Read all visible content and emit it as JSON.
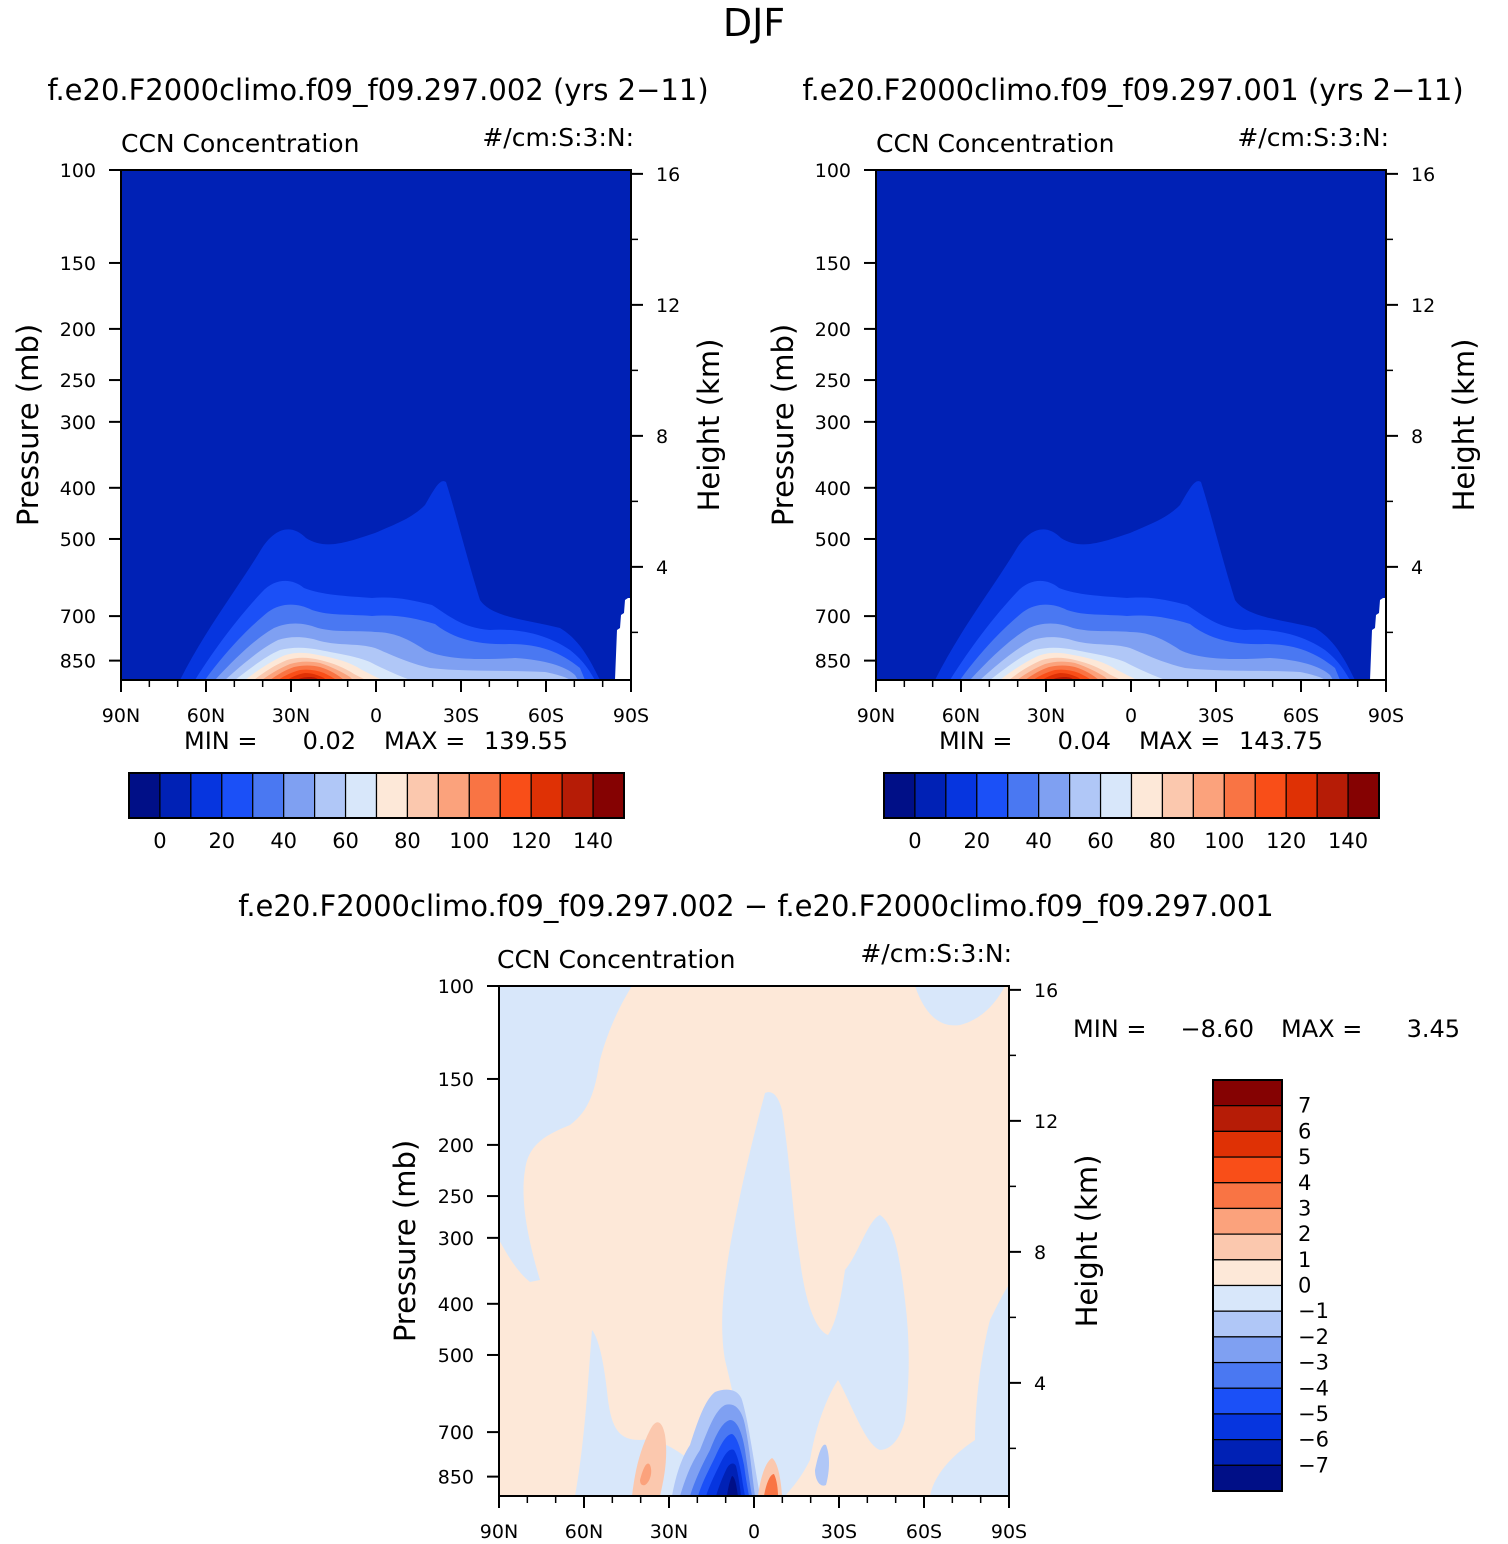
{
  "figure": {
    "title": "DJF",
    "bottom_title": "f.e20.F2000climo.f09_f09.297.002 − f.e20.F2000climo.f09_f09.297.001"
  },
  "chart_data": [
    {
      "type": "heatmap",
      "title": "f.e20.F2000climo.f09_f09.297.002 (yrs 2−11)",
      "left_label": "CCN Concentration",
      "right_label": "#/cm:S:3:N:",
      "ylabel": "Pressure (mb)",
      "ylabel_right": "Height (km)",
      "x_ticks": [
        "90N",
        "60N",
        "30N",
        "0",
        "30S",
        "60S",
        "90S"
      ],
      "y_ticks": [
        100,
        150,
        200,
        250,
        300,
        400,
        500,
        700,
        850
      ],
      "y_right_ticks": [
        16,
        12,
        8,
        4
      ],
      "stats": {
        "min_label": "MIN =",
        "min": "0.02",
        "max_label": "MAX =",
        "max": "139.55"
      },
      "colorbar": {
        "labels": [
          "0",
          "20",
          "40",
          "60",
          "80",
          "100",
          "120",
          "140"
        ],
        "colors": [
          "#000f87",
          "#0021b5",
          "#0635df",
          "#1b50f7",
          "#4a78f2",
          "#7fa0f2",
          "#b0c7f7",
          "#d8e7fa",
          "#fde8d8",
          "#fbc8ae",
          "#fba27c",
          "#f97444",
          "#f94e18",
          "#df3105",
          "#b61c06",
          "#850202"
        ]
      }
    },
    {
      "type": "heatmap",
      "title": "f.e20.F2000climo.f09_f09.297.001 (yrs 2−11)",
      "left_label": "CCN Concentration",
      "right_label": "#/cm:S:3:N:",
      "ylabel": "Pressure (mb)",
      "ylabel_right": "Height (km)",
      "x_ticks": [
        "90N",
        "60N",
        "30N",
        "0",
        "30S",
        "60S",
        "90S"
      ],
      "y_ticks": [
        100,
        150,
        200,
        250,
        300,
        400,
        500,
        700,
        850
      ],
      "y_right_ticks": [
        16,
        12,
        8,
        4
      ],
      "stats": {
        "min_label": "MIN =",
        "min": "0.04",
        "max_label": "MAX =",
        "max": "143.75"
      },
      "colorbar": {
        "labels": [
          "0",
          "20",
          "40",
          "60",
          "80",
          "100",
          "120",
          "140"
        ],
        "colors": [
          "#000f87",
          "#0021b5",
          "#0635df",
          "#1b50f7",
          "#4a78f2",
          "#7fa0f2",
          "#b0c7f7",
          "#d8e7fa",
          "#fde8d8",
          "#fbc8ae",
          "#fba27c",
          "#f97444",
          "#f94e18",
          "#df3105",
          "#b61c06",
          "#850202"
        ]
      }
    },
    {
      "type": "heatmap",
      "left_label": "CCN Concentration",
      "right_label": "#/cm:S:3:N:",
      "ylabel": "Pressure (mb)",
      "ylabel_right": "Height (km)",
      "x_ticks": [
        "90N",
        "60N",
        "30N",
        "0",
        "30S",
        "60S",
        "90S"
      ],
      "y_ticks": [
        100,
        150,
        200,
        250,
        300,
        400,
        500,
        700,
        850
      ],
      "y_right_ticks": [
        16,
        12,
        8,
        4
      ],
      "stats": {
        "min_label": "MIN =",
        "min": "−8.60",
        "max_label": "MAX =",
        "max": "3.45"
      },
      "colorbar": {
        "labels": [
          "7",
          "6",
          "5",
          "4",
          "3",
          "2",
          "1",
          "0",
          "−1",
          "−2",
          "−3",
          "−4",
          "−5",
          "−6",
          "−7"
        ],
        "colors": [
          "#850202",
          "#b61c06",
          "#df3105",
          "#f94e18",
          "#f97444",
          "#fba27c",
          "#fbc8ae",
          "#fde8d8",
          "#d8e7fa",
          "#b0c7f7",
          "#7fa0f2",
          "#4a78f2",
          "#1b50f7",
          "#0635df",
          "#0021b5",
          "#000f87"
        ]
      }
    }
  ]
}
